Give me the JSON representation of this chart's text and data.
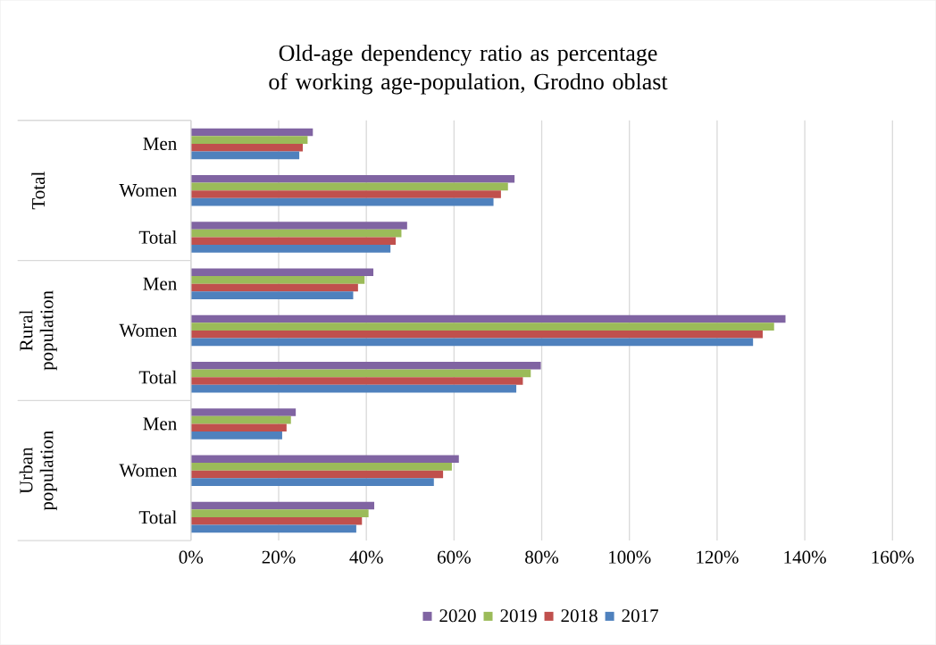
{
  "chart_data": {
    "type": "bar",
    "orientation": "horizontal",
    "title": "Old-age dependency ratio as percentage of working age-population, Grodno oblast",
    "categories": [
      "Men",
      "Women",
      "Total",
      "Men",
      "Women",
      "Total",
      "Men",
      "Women",
      "Total"
    ],
    "annotations": [
      "Total",
      "Rural population",
      "Urban population"
    ],
    "series": [
      {
        "name": "2020",
        "color": "#8064a2",
        "values": [
          27.8,
          73.8,
          49.3,
          41.6,
          135.6,
          79.8,
          23.9,
          61.1,
          41.8
        ]
      },
      {
        "name": "2019",
        "color": "#9bbb59",
        "values": [
          26.6,
          72.3,
          48.0,
          39.6,
          133.0,
          77.5,
          22.8,
          59.5,
          40.5
        ]
      },
      {
        "name": "2018",
        "color": "#c0504d",
        "values": [
          25.5,
          70.7,
          46.7,
          38.1,
          130.4,
          75.7,
          21.8,
          57.5,
          39.0
        ]
      },
      {
        "name": "2017",
        "color": "#4f81bd",
        "values": [
          24.7,
          69.0,
          45.5,
          37.0,
          128.2,
          74.2,
          20.8,
          55.4,
          37.7
        ]
      }
    ],
    "xlim": [
      0,
      160
    ],
    "xticks": [
      {
        "value": 0,
        "label": "0%"
      },
      {
        "value": 20,
        "label": "20%"
      },
      {
        "value": 40,
        "label": "40%"
      },
      {
        "value": 60,
        "label": "60%"
      },
      {
        "value": 80,
        "label": "80%"
      },
      {
        "value": 100,
        "label": "100%"
      },
      {
        "value": 120,
        "label": "120%"
      },
      {
        "value": 140,
        "label": "140%"
      },
      {
        "value": 160,
        "label": "160%"
      }
    ],
    "grid": "x",
    "legend": "bottom"
  }
}
